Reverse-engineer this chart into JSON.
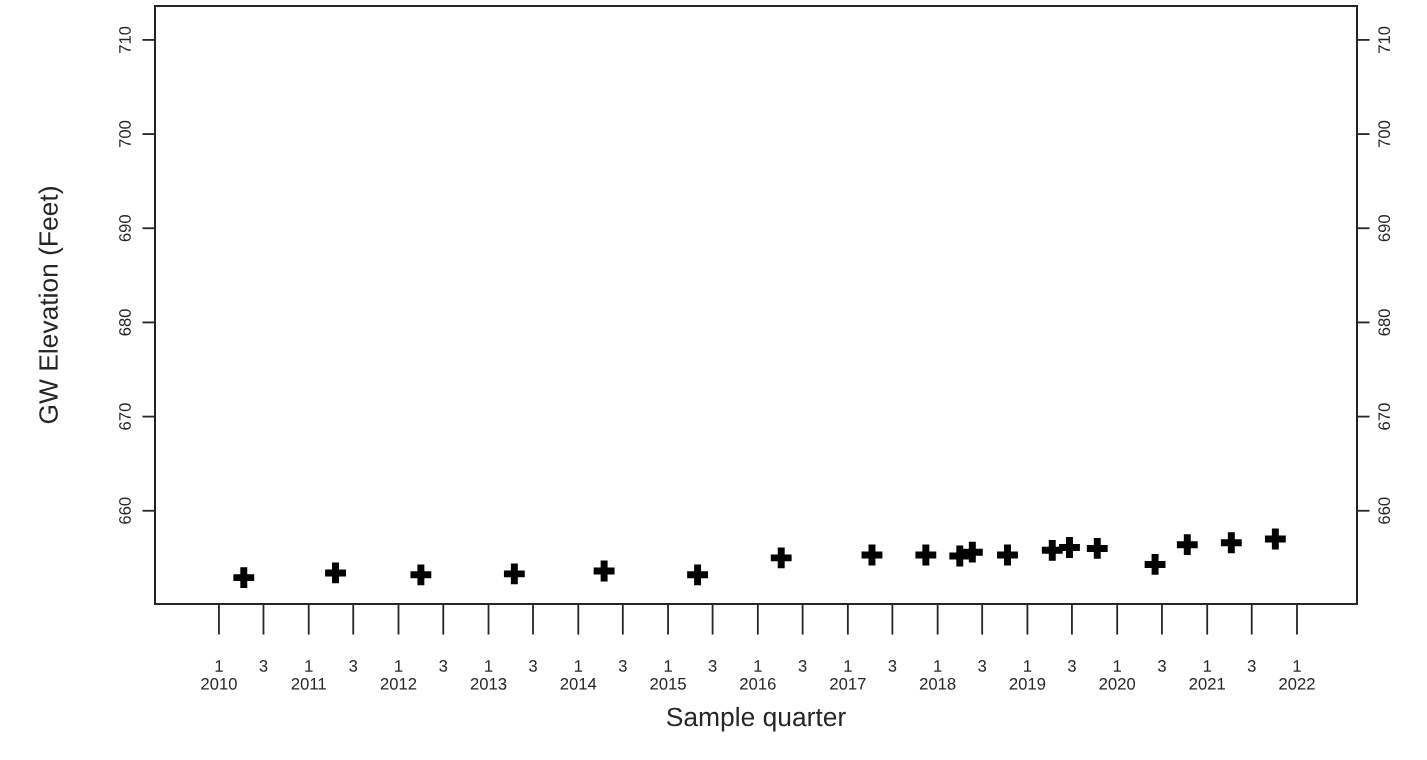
{
  "chart_data": {
    "type": "scatter",
    "xlabel": "Sample quarter",
    "ylabel": "GW Elevation (Feet)",
    "marker": "cross",
    "grid": false,
    "legend": false,
    "x": [
      "2010-04-12",
      "2011-04-20",
      "2012-04-01",
      "2013-04-16",
      "2014-04-16",
      "2015-05-01",
      "2016-04-05",
      "2017-04-09",
      "2017-11-14",
      "2018-04-01",
      "2018-05-22",
      "2018-10-12",
      "2019-04-12",
      "2019-06-21",
      "2019-10-12",
      "2020-06-03",
      "2020-10-12",
      "2021-04-09",
      "2021-10-05"
    ],
    "series": [
      {
        "color": "#000000",
        "values": [
          652.9,
          653.4,
          653.2,
          653.3,
          653.6,
          653.2,
          655.0,
          655.3,
          655.3,
          655.2,
          655.6,
          655.3,
          655.8,
          656.1,
          656.0,
          654.3,
          656.4,
          656.6,
          657.0
        ]
      }
    ],
    "xlim": [
      "2009-04-16",
      "2022-09-02"
    ],
    "ylim": [
      650.1,
      713.6
    ],
    "yticks": [
      660,
      670,
      680,
      690,
      700,
      710
    ],
    "y2lim": [
      650.1,
      713.6
    ],
    "y2ticks": [
      660,
      670,
      680,
      690,
      700,
      710
    ],
    "xticks": [
      {
        "value": "2010-01",
        "label": "1\n2010"
      },
      {
        "value": "2010-07",
        "label": "3"
      },
      {
        "value": "2011-01",
        "label": "1\n2011"
      },
      {
        "value": "2011-07",
        "label": "3"
      },
      {
        "value": "2012-01",
        "label": "1\n2012"
      },
      {
        "value": "2012-07",
        "label": "3"
      },
      {
        "value": "2013-01",
        "label": "1\n2013"
      },
      {
        "value": "2013-07",
        "label": "3"
      },
      {
        "value": "2014-01",
        "label": "1\n2014"
      },
      {
        "value": "2014-07",
        "label": "3"
      },
      {
        "value": "2015-01",
        "label": "1\n2015"
      },
      {
        "value": "2015-07",
        "label": "3"
      },
      {
        "value": "2016-01",
        "label": "1\n2016"
      },
      {
        "value": "2016-07",
        "label": "3"
      },
      {
        "value": "2017-01",
        "label": "1\n2017"
      },
      {
        "value": "2017-07",
        "label": "3"
      },
      {
        "value": "2018-01",
        "label": "1\n2018"
      },
      {
        "value": "2018-07",
        "label": "3"
      },
      {
        "value": "2019-01",
        "label": "1\n2019"
      },
      {
        "value": "2019-07",
        "label": "3"
      },
      {
        "value": "2020-01",
        "label": "1\n2020"
      },
      {
        "value": "2020-07",
        "label": "3"
      },
      {
        "value": "2021-01",
        "label": "1\n2021"
      },
      {
        "value": "2021-07",
        "label": "3"
      },
      {
        "value": "2022-01",
        "label": "1\n2022"
      }
    ]
  }
}
